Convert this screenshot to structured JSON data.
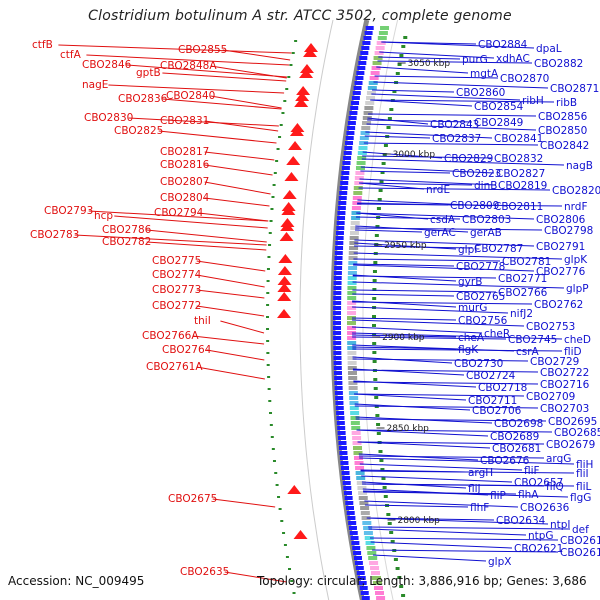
{
  "title": "Clostridium botulinum A str. ATCC 3502, complete genome",
  "footer": {
    "accession": "Accession: NC_009495",
    "stats": "Topology: circular; Length: 3,886,916 bp; Genes: 3,686"
  },
  "colors": {
    "left_labels": "#e01010",
    "right_labels": "#1010d0",
    "backbone": "#888888",
    "forward_features": "#1a1aff",
    "reverse_features": "#ff1a1a",
    "small_ticks": "#2a8a2a"
  },
  "kbp_markers": [
    "3050 kbp",
    "3000 kbp",
    "2950 kbp",
    "2900 kbp",
    "2850 kbp",
    "2800 kbp"
  ],
  "left_labels": [
    "ctfB",
    "ctfA",
    "CBO2846",
    "gptB",
    "CBO2855",
    "CBO2848A",
    "nagE",
    "CBO2836",
    "CBO2840",
    "CBO2830",
    "CBO2831",
    "CBO2825",
    "CBO2817",
    "CBO2816",
    "CBO2807",
    "CBO2804",
    "CBO2793",
    "hcp",
    "CBO2794",
    "CBO2783",
    "CBO2786",
    "CBO2782",
    "CBO2775",
    "CBO2774",
    "CBO2773",
    "CBO2772",
    "thiI",
    "CBO2766A",
    "CBO2764",
    "CBO2761A",
    "CBO2675",
    "CBO2635"
  ],
  "right_labels": [
    "CBO2884",
    "dpaL",
    "purG",
    "xdhAC",
    "CBO2882",
    "mgtA",
    "CBO2870",
    "CBO2871",
    "CBO2860",
    "ribH",
    "ribB",
    "CBO2854",
    "CBO2856",
    "CBO2843",
    "CBO2849",
    "CBO2850",
    "CBO2837",
    "CBO2841",
    "CBO2842",
    "CBO2829",
    "CBO2832",
    "nagB",
    "CBO2823",
    "CBO2827",
    "dinB",
    "CBO2819",
    "CBO2820",
    "nrdE",
    "CBO2809",
    "CBO2811",
    "nrdF",
    "csdA",
    "CBO2803",
    "CBO2806",
    "gerAC",
    "gerAB",
    "CBO2798",
    "glpF",
    "CBO2787",
    "CBO2791",
    "CBO2781",
    "glpK",
    "CBO2778",
    "gyrB",
    "CBO2771",
    "CBO2776",
    "CBO2766",
    "glpP",
    "CBO2765",
    "murG",
    "CBO2762",
    "nifJ2",
    "CBO2756",
    "CBO2753",
    "cheA",
    "cheR",
    "CBO2745",
    "cheD",
    "flgK",
    "csrA",
    "fliD",
    "CBO2730",
    "CBO2729",
    "CBO2724",
    "CBO2722",
    "CBO2718",
    "CBO2716",
    "CBO2711",
    "CBO2709",
    "CBO2706",
    "CBO2703",
    "CBO2698",
    "CBO2695",
    "CBO2689",
    "CBO2685",
    "CBO2681",
    "CBO2679",
    "CBO2676",
    "argG",
    "fliH",
    "argH",
    "fliF",
    "fliI",
    "CBO2657",
    "fliL",
    "fliJ",
    "fliQ",
    "fliP",
    "flhA",
    "flgG",
    "flhF",
    "CBO2636",
    "CBO2634",
    "ntpI",
    "def",
    "ntpG",
    "CBO2618",
    "CBO2621",
    "CBO2612",
    "glpX"
  ]
}
